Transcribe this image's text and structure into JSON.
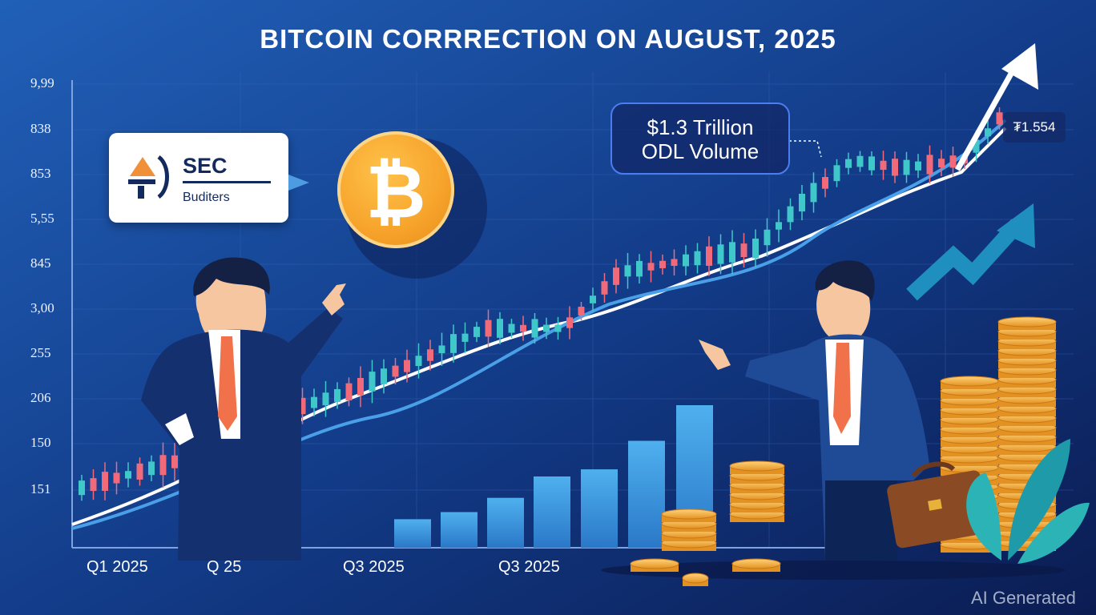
{
  "title": "BITCOIN CORRRECTION ON AUGUST, 2025",
  "y_axis_labels": [
    "9,99",
    "838",
    "853",
    "5,55",
    "845",
    "3,00",
    "255",
    "206",
    "150",
    "151"
  ],
  "x_axis_labels": [
    "Q1 2025",
    "Q  25",
    "Q3 2025",
    "Q3 2025"
  ],
  "sec_card": {
    "title": "SEC",
    "subtitle": "Buditers"
  },
  "odl_callout": {
    "line1": "$1.3 Trillion",
    "line2": "ODL Volume"
  },
  "price_tag": "₮1.554",
  "watermark": "AI Generated",
  "colors": {
    "background_top": "#1b4fa8",
    "background_bottom": "#0d1f5c",
    "candle_up": "#3fc7c9",
    "candle_down": "#f06a7a",
    "bars": "#4aa3e6",
    "coin": "#f6a22a",
    "suit": "#15306e",
    "tie": "#f0714a"
  },
  "icons": [
    "bitcoin-icon",
    "sec-logo-icon",
    "arrow-up-right-icon",
    "briefcase-icon",
    "coin-stack-icon",
    "leaf-plant-icon"
  ],
  "volume_bars": [
    8,
    10,
    14,
    20,
    22,
    30,
    40
  ]
}
